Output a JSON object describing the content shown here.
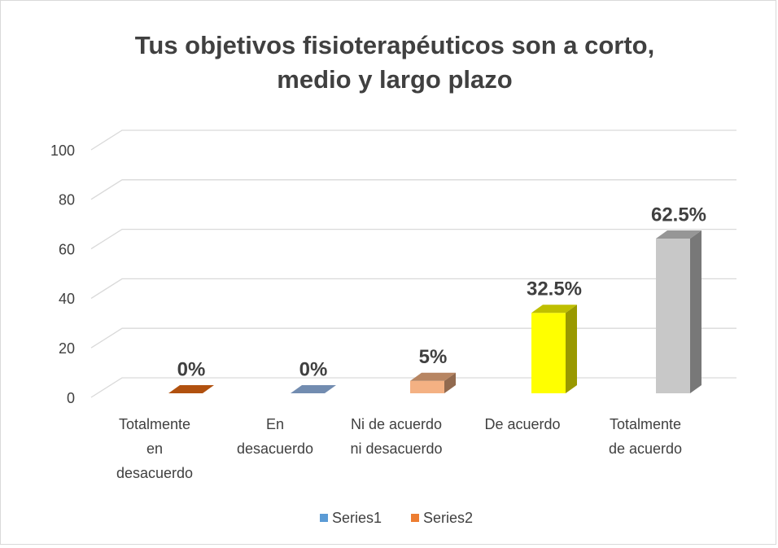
{
  "chart_data": {
    "type": "bar3d",
    "title": "Tus objetivos fisioterapéuticos son a corto,\nmedio y largo plazo",
    "categories": [
      "Totalmente\nen\ndesacuerdo",
      "En\ndesacuerdo",
      "Ni de acuerdo\nni desacuerdo",
      "De acuerdo",
      "Totalmente\nde acuerdo"
    ],
    "values": [
      0,
      0,
      5,
      32.5,
      62.5
    ],
    "value_labels": [
      "0%",
      "0%",
      "5%",
      "32.5%",
      "62.5%"
    ],
    "colors": [
      "#c55a11",
      "#7f9cc4",
      "#f4b183",
      "#ffff00",
      "#c8c8c8"
    ],
    "ylim": [
      0,
      100
    ],
    "yticks": [
      0,
      20,
      40,
      60,
      80,
      100
    ],
    "grid": true,
    "legend": [
      {
        "name": "Series1",
        "color": "#5b9bd5"
      },
      {
        "name": "Series2",
        "color": "#ed7d31"
      }
    ],
    "legend_position": "bottom"
  }
}
